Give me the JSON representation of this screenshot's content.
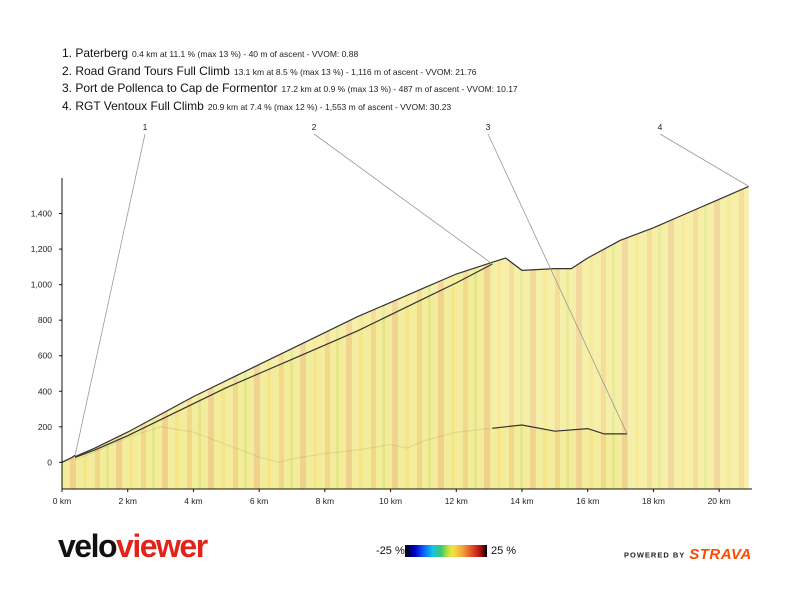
{
  "legend": [
    {
      "name": "1. Paterberg",
      "stats": "0.4 km at 11.1 % (max 13 %) - 40 m of ascent - VVOM: 0.88"
    },
    {
      "name": "2. Road Grand Tours Full Climb",
      "stats": "13.1 km at 8.5 % (max 13 %) - 1,116 m of ascent - VVOM: 21.76"
    },
    {
      "name": "3. Port de Pollenca to Cap de Formentor",
      "stats": "17.2 km at 0.9 % (max 13 %) - 487 m of ascent - VVOM: 10.17"
    },
    {
      "name": "4. RGT Ventoux Full Climb",
      "stats": "20.9 km at 7.4 % (max 12 %) - 1,553 m of ascent - VVOM: 30.23"
    }
  ],
  "chart_data": {
    "type": "area",
    "xlim": [
      0,
      21
    ],
    "ylim": [
      -150,
      1600
    ],
    "x_ticks": [
      0,
      2,
      4,
      6,
      8,
      10,
      12,
      14,
      16,
      18,
      20
    ],
    "x_tick_labels": [
      "0 km",
      "2 km",
      "4 km",
      "6 km",
      "8 km",
      "10 km",
      "12 km",
      "14 km",
      "16 km",
      "18 km",
      "20 km"
    ],
    "y_ticks": [
      0,
      200,
      400,
      600,
      800,
      1000,
      1200,
      1400
    ],
    "y_tick_labels": [
      "0",
      "200",
      "400",
      "600",
      "800",
      "1,000",
      "1,200",
      "1,400"
    ],
    "colors": {
      "fill_base": "#f3ec9a",
      "axis": "#111111",
      "outline": "#333333",
      "callout": "#999999"
    },
    "series": [
      {
        "callout": "1",
        "x": [
          0,
          0.15,
          0.3,
          0.4
        ],
        "y": [
          0,
          14,
          28,
          40
        ],
        "callout_at": [
          0.4,
          40
        ]
      },
      {
        "callout": "2",
        "x": [
          0,
          1,
          2,
          3,
          4,
          5,
          6,
          7,
          8,
          9,
          10,
          11,
          12,
          13.1
        ],
        "y": [
          0,
          70,
          150,
          240,
          330,
          420,
          500,
          580,
          660,
          740,
          830,
          920,
          1010,
          1116
        ],
        "callout_at": [
          13.1,
          1116
        ]
      },
      {
        "callout": "3",
        "x": [
          0,
          0.5,
          1,
          2,
          3,
          4,
          5,
          6,
          6.6,
          7,
          8,
          9,
          10,
          10.5,
          11,
          12,
          13,
          14,
          15,
          16,
          16.5,
          17.2
        ],
        "y": [
          0,
          20,
          60,
          140,
          200,
          170,
          100,
          30,
          0,
          20,
          50,
          70,
          100,
          80,
          120,
          170,
          190,
          210,
          175,
          190,
          160,
          160
        ],
        "callout_at": [
          17.2,
          160
        ]
      },
      {
        "callout": "4",
        "x": [
          0,
          1,
          2,
          3,
          4,
          5,
          6,
          7,
          8,
          9,
          10,
          11,
          12,
          13,
          13.5,
          14,
          15,
          15.5,
          16,
          17,
          18,
          19,
          20,
          20.9
        ],
        "y": [
          0,
          80,
          170,
          270,
          370,
          460,
          550,
          640,
          730,
          820,
          900,
          980,
          1060,
          1120,
          1150,
          1080,
          1090,
          1090,
          1150,
          1250,
          1320,
          1400,
          1480,
          1553
        ],
        "callout_at": [
          20.9,
          1553
        ]
      }
    ]
  },
  "logo": {
    "part1": "velo",
    "part2": "viewer"
  },
  "scale": {
    "min_label": "-25 %",
    "max_label": "25 %"
  },
  "footer": {
    "powered_by": "POWERED BY",
    "brand": "STRAVA"
  }
}
